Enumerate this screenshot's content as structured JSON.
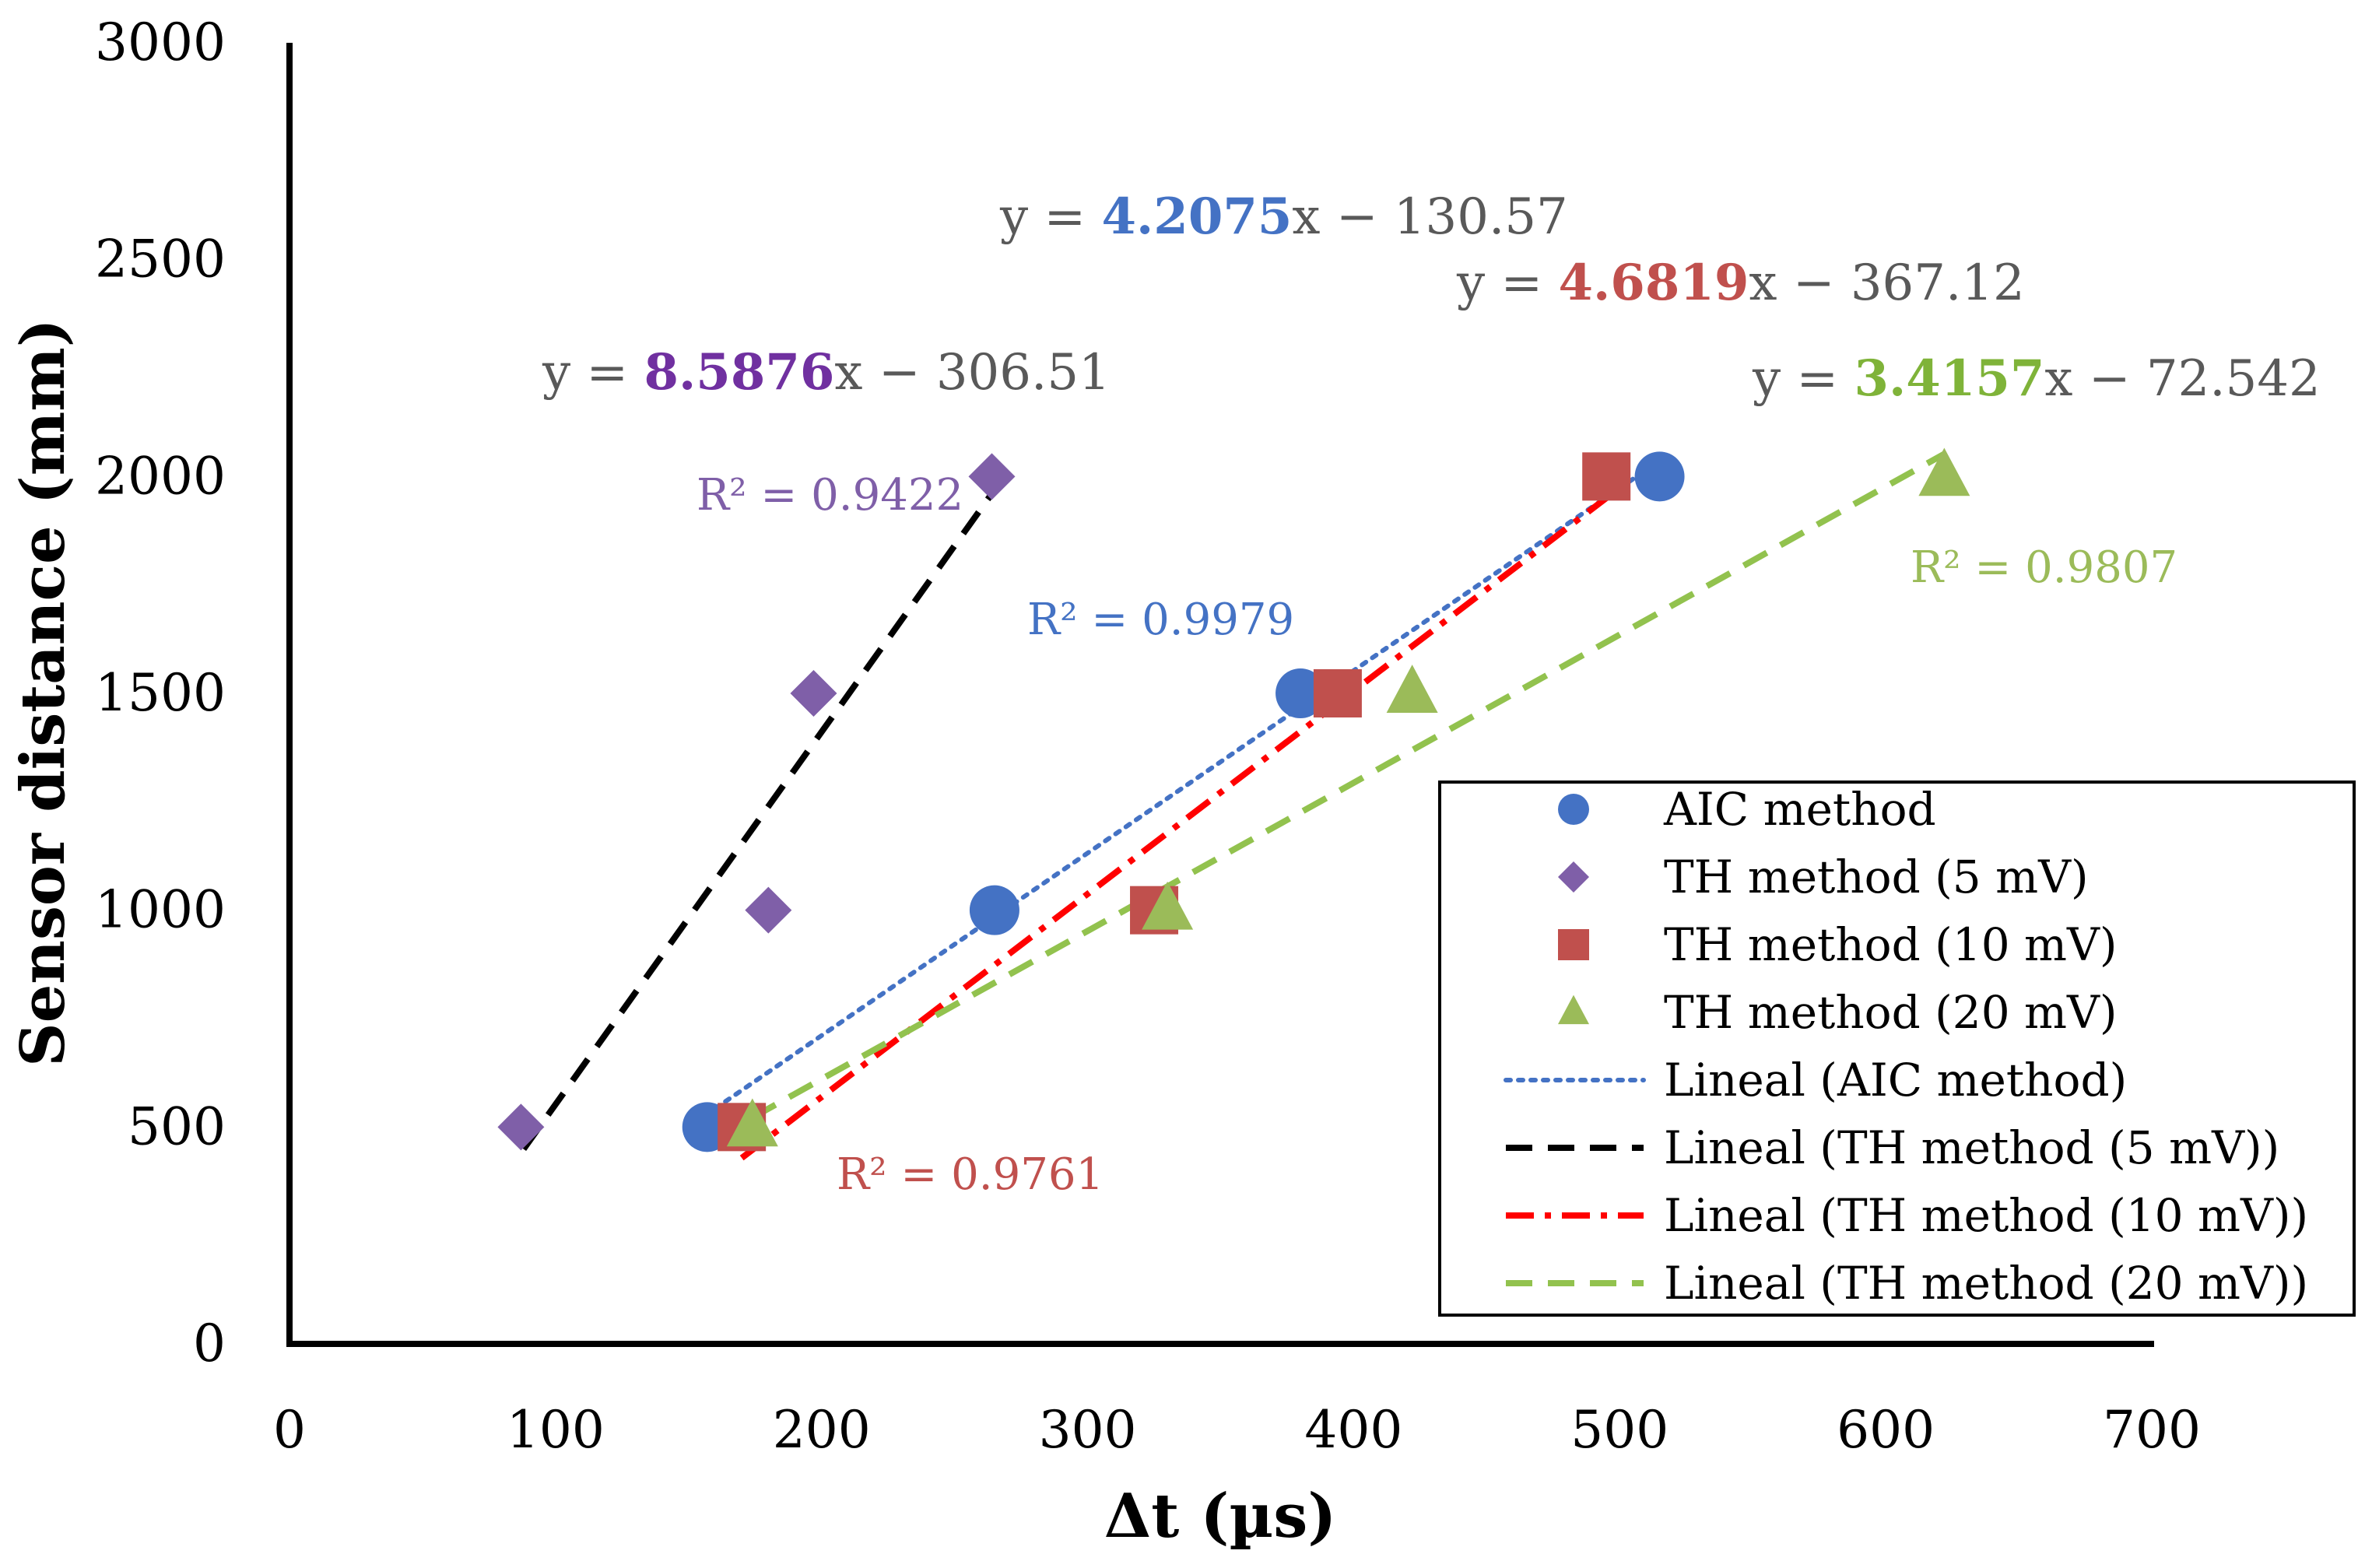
{
  "chart_data": {
    "type": "scatter",
    "title": "",
    "xlabel": "Δt (µs)",
    "ylabel": "Sensor distance (mm)",
    "xlim": [
      0,
      700
    ],
    "ylim": [
      0,
      3000
    ],
    "xticks": [
      "0",
      "100",
      "200",
      "300",
      "400",
      "500",
      "600",
      "700"
    ],
    "yticks": [
      "0",
      "500",
      "1000",
      "1500",
      "2000",
      "2500",
      "3000"
    ],
    "legend_position": "bottom-right",
    "series": [
      {
        "name": "AIC method",
        "marker": "circle",
        "color": "#4472C4",
        "x": [
          157,
          265,
          380,
          515
        ],
        "y": [
          500,
          1000,
          1500,
          2000
        ],
        "fit": {
          "name": "Lineal (AIC method)",
          "style": "dotted",
          "color": "#4472C4",
          "slope": 4.2075,
          "intercept": -130.57,
          "x_range": [
            160,
            515
          ],
          "eq_prefix": "y = ",
          "eq_slope": "4.2075",
          "eq_suffix": "x − 130.57",
          "eq_slope_color": "#4472C4",
          "r2": "R² = 0.9979"
        }
      },
      {
        "name": "TH method (5 mV)",
        "marker": "diamond",
        "color": "#7F5FA8",
        "x": [
          87,
          180,
          197,
          264
        ],
        "y": [
          500,
          1000,
          1500,
          2000
        ],
        "fit": {
          "name": "Lineal (TH method (5 mV))",
          "style": "dashed",
          "color": "#000000",
          "slope": 8.5876,
          "intercept": -306.51,
          "x_range": [
            88,
            264
          ],
          "eq_prefix": "y = ",
          "eq_slope": "8.5876",
          "eq_suffix": "x − 306.51",
          "eq_slope_color": "#7030A0",
          "r2": "R² = 0.9422"
        }
      },
      {
        "name": "TH method (10 mV)",
        "marker": "square",
        "color": "#C0504D",
        "x": [
          170,
          325,
          394,
          495
        ],
        "y": [
          500,
          1000,
          1500,
          2000
        ],
        "fit": {
          "name": "Lineal (TH method (10 mV))",
          "style": "dashdot",
          "color": "#FF0000",
          "slope": 4.6819,
          "intercept": -367.12,
          "x_range": [
            170,
            495
          ],
          "eq_prefix": "y = ",
          "eq_slope": "4.6819",
          "eq_suffix": "x − 367.12",
          "eq_slope_color": "#C0504D",
          "r2": "R² = 0.9761"
        }
      },
      {
        "name": "TH method (20 mV)",
        "marker": "triangle",
        "color": "#9BBB59",
        "x": [
          174,
          330,
          422,
          622
        ],
        "y": [
          500,
          1000,
          1500,
          2000
        ],
        "fit": {
          "name": "Lineal (TH method (20 mV))",
          "style": "dashed",
          "color": "#92C24E",
          "slope": 3.4157,
          "intercept": -72.542,
          "x_range": [
            174,
            622
          ],
          "eq_prefix": "y = ",
          "eq_slope": "3.4157",
          "eq_suffix": "x − 72.542",
          "eq_slope_color": "#7FB339",
          "r2": "R² = 0.9807"
        }
      }
    ]
  }
}
